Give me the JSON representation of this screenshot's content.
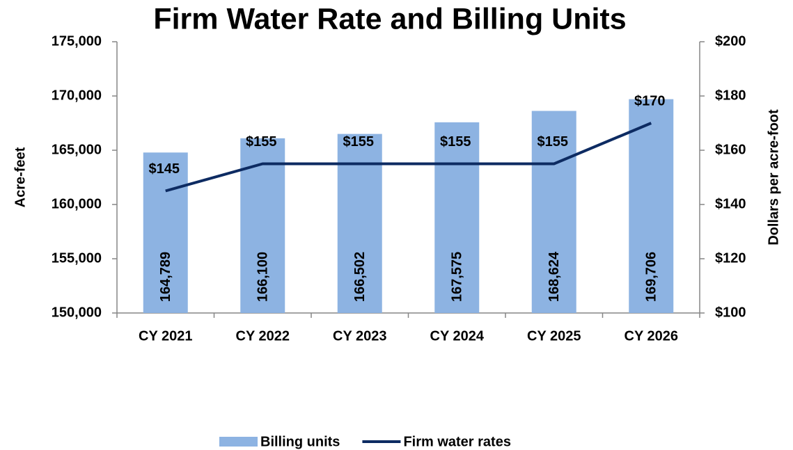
{
  "chart_data": {
    "type": "combo",
    "title": "Firm Water Rate and Billing Units",
    "categories": [
      "CY 2021",
      "CY 2022",
      "CY 2023",
      "CY 2024",
      "CY 2025",
      "CY 2026"
    ],
    "series": [
      {
        "name": "Billing units",
        "type": "bar",
        "color": "#8db3e2",
        "axis": "y",
        "values": [
          164789,
          166100,
          166502,
          167575,
          168624,
          169706
        ],
        "value_labels": [
          "164,789",
          "166,100",
          "166,502",
          "167,575",
          "168,624",
          "169,706"
        ]
      },
      {
        "name": "Firm water rates",
        "type": "line",
        "color": "#0d2b62",
        "axis": "y2",
        "values": [
          145,
          155,
          155,
          155,
          155,
          170
        ],
        "value_labels": [
          "$145",
          "$155",
          "$155",
          "$155",
          "$155",
          "$170"
        ]
      }
    ],
    "ylabel": "Acre-feet",
    "y2label": "Dollars per acre-foot",
    "ylim": [
      150000,
      175000
    ],
    "yticks": [
      {
        "value": 150000,
        "label": "150,000"
      },
      {
        "value": 155000,
        "label": "155,000"
      },
      {
        "value": 160000,
        "label": "160,000"
      },
      {
        "value": 165000,
        "label": "165,000"
      },
      {
        "value": 170000,
        "label": "170,000"
      },
      {
        "value": 175000,
        "label": "175,000"
      }
    ],
    "y2lim": [
      100,
      200
    ],
    "y2ticks": [
      {
        "value": 100,
        "label": "$100"
      },
      {
        "value": 120,
        "label": "$120"
      },
      {
        "value": 140,
        "label": "$140"
      },
      {
        "value": 160,
        "label": "$160"
      },
      {
        "value": 180,
        "label": "$180"
      },
      {
        "value": 200,
        "label": "$200"
      }
    ],
    "legend": "bottom"
  }
}
